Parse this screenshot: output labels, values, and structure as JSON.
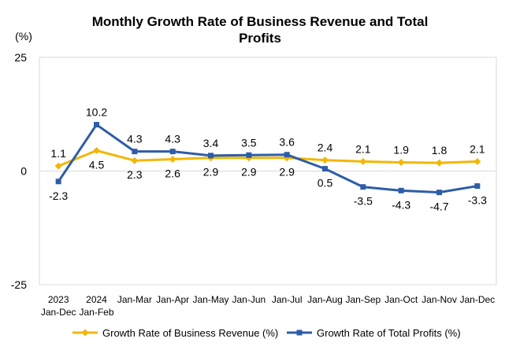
{
  "chart_data": {
    "type": "line",
    "title": "Monthly Growth Rate of Business Revenue and Total Profits",
    "title_lines": [
      "Monthly Growth Rate of Business Revenue and Total",
      "Profits"
    ],
    "unit_label": "(%)",
    "xlabel": "",
    "ylabel": "(%)",
    "ylim": [
      -25,
      25
    ],
    "y_ticks": [
      25,
      0,
      -25
    ],
    "grid": false,
    "legend_position": "bottom",
    "categories": [
      [
        "2023",
        "Jan-Dec"
      ],
      [
        "2024",
        "Jan-Feb"
      ],
      [
        "Jan-Mar"
      ],
      [
        "Jan-Apr"
      ],
      [
        "Jan-May"
      ],
      [
        "Jan-Jun"
      ],
      [
        "Jan-Jul"
      ],
      [
        "Jan-Aug"
      ],
      [
        "Jan-Sep"
      ],
      [
        "Jan-Oct"
      ],
      [
        "Jan-Nov"
      ],
      [
        "Jan-Dec"
      ]
    ],
    "series": [
      {
        "name": "Growth Rate of Business Revenue (%)",
        "color": "#F2B705",
        "marker": "diamond",
        "values": [
          1.1,
          4.5,
          2.3,
          2.6,
          2.9,
          2.9,
          2.9,
          2.4,
          2.1,
          1.9,
          1.8,
          2.1
        ],
        "labels": [
          "1.1",
          "4.5",
          "2.3",
          "2.6",
          "2.9",
          "2.9",
          "2.9",
          "2.4",
          "2.1",
          "1.9",
          "1.8",
          "2.1"
        ],
        "label_side": [
          "above",
          "below",
          "below",
          "below",
          "below",
          "below",
          "below",
          "above",
          "above",
          "above",
          "above",
          "above"
        ]
      },
      {
        "name": "Growth Rate of Total Profits (%)",
        "color": "#2E5DA8",
        "marker": "square",
        "values": [
          -2.3,
          10.2,
          4.3,
          4.3,
          3.4,
          3.5,
          3.6,
          0.5,
          -3.5,
          -4.3,
          -4.7,
          -3.3
        ],
        "labels": [
          "-2.3",
          "10.2",
          "4.3",
          "4.3",
          "3.4",
          "3.5",
          "3.6",
          "0.5",
          "-3.5",
          "-4.3",
          "-4.7",
          "-3.3"
        ],
        "label_side": [
          "below",
          "above",
          "above",
          "above",
          "above",
          "above",
          "above",
          "below",
          "below",
          "below",
          "below",
          "below"
        ]
      }
    ]
  }
}
